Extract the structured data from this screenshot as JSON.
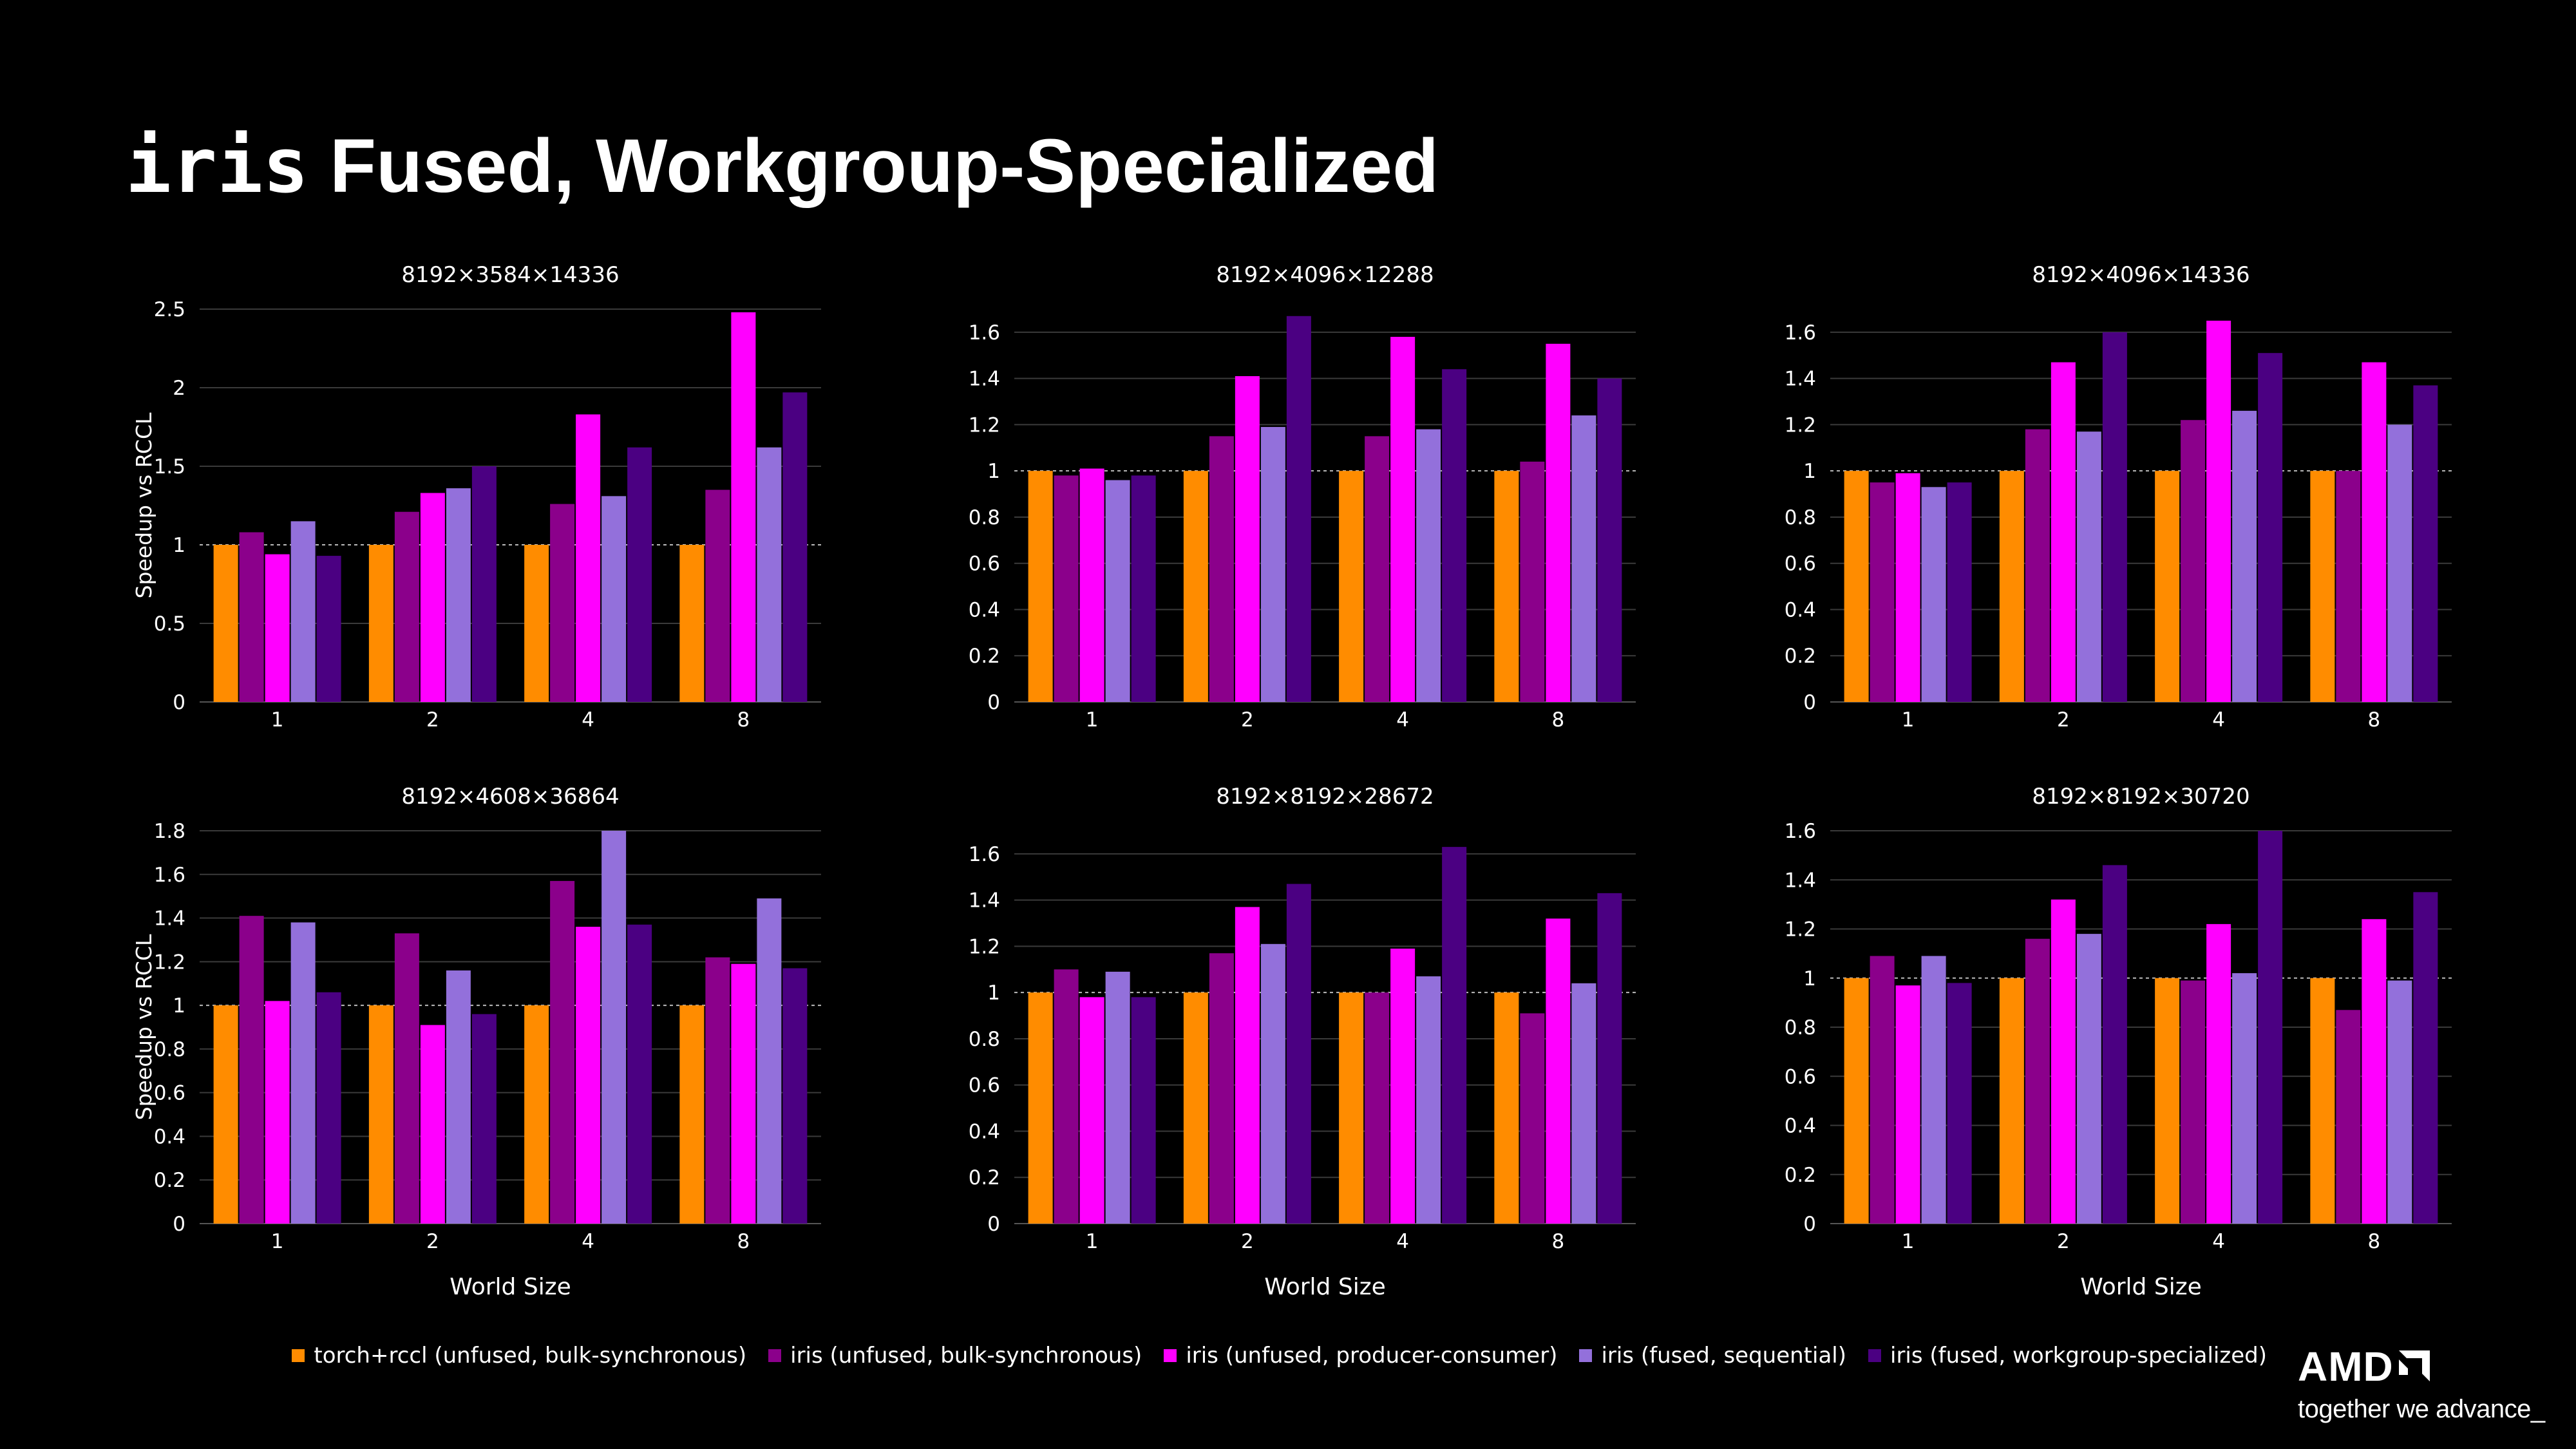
{
  "title": {
    "mono": "iris",
    "rest": " Fused, Workgroup-Specialized"
  },
  "series_colors": [
    "#ff8c00",
    "#8b008b",
    "#ff00ff",
    "#9370db",
    "#4b0082"
  ],
  "legend": [
    "torch+rccl (unfused, bulk-synchronous)",
    "iris (unfused, bulk-synchronous)",
    "iris (unfused, producer-consumer)",
    "iris (fused, sequential)",
    "iris (fused, workgroup-specialized)"
  ],
  "logo": {
    "brand": "AMD",
    "tagline": "together we advance_"
  },
  "chart_data": [
    {
      "type": "bar",
      "title": "8192×3584×14336",
      "categories": [
        "1",
        "2",
        "4",
        "8"
      ],
      "ylabel": "Speedup vs RCCL",
      "xlabel": "",
      "ylim": [
        0,
        2.5
      ],
      "yticks": [
        0,
        0.5,
        1,
        1.5,
        2,
        2.5
      ],
      "ytick_labels": [
        "0",
        "0.5",
        "1",
        "1.5",
        "2",
        "2.5"
      ],
      "series": [
        {
          "name": "torch+rccl (unfused, bulk-synchronous)",
          "values": [
            1.0,
            1.0,
            1.0,
            1.0
          ]
        },
        {
          "name": "iris (unfused, bulk-synchronous)",
          "values": [
            1.08,
            1.21,
            1.26,
            1.35
          ]
        },
        {
          "name": "iris (unfused, producer-consumer)",
          "values": [
            0.94,
            1.33,
            1.83,
            2.48
          ]
        },
        {
          "name": "iris (fused, sequential)",
          "values": [
            1.15,
            1.36,
            1.31,
            1.62
          ]
        },
        {
          "name": "iris (fused, workgroup-specialized)",
          "values": [
            0.93,
            1.5,
            1.62,
            1.97
          ]
        }
      ]
    },
    {
      "type": "bar",
      "title": "8192×4096×12288",
      "categories": [
        "1",
        "2",
        "4",
        "8"
      ],
      "ylabel": "",
      "xlabel": "",
      "ylim": [
        0,
        1.7
      ],
      "yticks": [
        0,
        0.2,
        0.4,
        0.6,
        0.8,
        1,
        1.2,
        1.4,
        1.6
      ],
      "ytick_labels": [
        "0",
        "0.2",
        "0.4",
        "0.6",
        "0.8",
        "1",
        "1.2",
        "1.4",
        "1.6"
      ],
      "series": [
        {
          "name": "torch+rccl (unfused, bulk-synchronous)",
          "values": [
            1.0,
            1.0,
            1.0,
            1.0
          ]
        },
        {
          "name": "iris (unfused, bulk-synchronous)",
          "values": [
            0.98,
            1.15,
            1.15,
            1.04
          ]
        },
        {
          "name": "iris (unfused, producer-consumer)",
          "values": [
            1.01,
            1.41,
            1.58,
            1.55
          ]
        },
        {
          "name": "iris (fused, sequential)",
          "values": [
            0.96,
            1.19,
            1.18,
            1.24
          ]
        },
        {
          "name": "iris (fused, workgroup-specialized)",
          "values": [
            0.98,
            1.67,
            1.44,
            1.4
          ]
        }
      ]
    },
    {
      "type": "bar",
      "title": "8192×4096×14336",
      "categories": [
        "1",
        "2",
        "4",
        "8"
      ],
      "ylabel": "",
      "xlabel": "",
      "ylim": [
        0,
        1.7
      ],
      "yticks": [
        0,
        0.2,
        0.4,
        0.6,
        0.8,
        1,
        1.2,
        1.4,
        1.6
      ],
      "ytick_labels": [
        "0",
        "0.2",
        "0.4",
        "0.6",
        "0.8",
        "1",
        "1.2",
        "1.4",
        "1.6"
      ],
      "series": [
        {
          "name": "torch+rccl (unfused, bulk-synchronous)",
          "values": [
            1.0,
            1.0,
            1.0,
            1.0
          ]
        },
        {
          "name": "iris (unfused, bulk-synchronous)",
          "values": [
            0.95,
            1.18,
            1.22,
            1.0
          ]
        },
        {
          "name": "iris (unfused, producer-consumer)",
          "values": [
            0.99,
            1.47,
            1.65,
            1.47
          ]
        },
        {
          "name": "iris (fused, sequential)",
          "values": [
            0.93,
            1.17,
            1.26,
            1.2
          ]
        },
        {
          "name": "iris (fused, workgroup-specialized)",
          "values": [
            0.95,
            1.6,
            1.51,
            1.37
          ]
        }
      ]
    },
    {
      "type": "bar",
      "title": "8192×4608×36864",
      "categories": [
        "1",
        "2",
        "4",
        "8"
      ],
      "ylabel": "Speedup vs RCCL",
      "xlabel": "World Size",
      "ylim": [
        0,
        1.8
      ],
      "yticks": [
        0,
        0.2,
        0.4,
        0.6,
        0.8,
        1,
        1.2,
        1.4,
        1.6,
        1.8
      ],
      "ytick_labels": [
        "0",
        "0.2",
        "0.4",
        "0.6",
        "0.8",
        "1",
        "1.2",
        "1.4",
        "1.6",
        "1.8"
      ],
      "series": [
        {
          "name": "torch+rccl (unfused, bulk-synchronous)",
          "values": [
            1.0,
            1.0,
            1.0,
            1.0
          ]
        },
        {
          "name": "iris (unfused, bulk-synchronous)",
          "values": [
            1.41,
            1.33,
            1.57,
            1.22
          ]
        },
        {
          "name": "iris (unfused, producer-consumer)",
          "values": [
            1.02,
            0.91,
            1.36,
            1.19
          ]
        },
        {
          "name": "iris (fused, sequential)",
          "values": [
            1.38,
            1.16,
            1.8,
            1.49
          ]
        },
        {
          "name": "iris (fused, workgroup-specialized)",
          "values": [
            1.06,
            0.96,
            1.37,
            1.17
          ]
        }
      ]
    },
    {
      "type": "bar",
      "title": "8192×8192×28672",
      "categories": [
        "1",
        "2",
        "4",
        "8"
      ],
      "ylabel": "",
      "xlabel": "World Size",
      "ylim": [
        0,
        1.7
      ],
      "yticks": [
        0,
        0.2,
        0.4,
        0.6,
        0.8,
        1,
        1.2,
        1.4,
        1.6
      ],
      "ytick_labels": [
        "0",
        "0.2",
        "0.4",
        "0.6",
        "0.8",
        "1",
        "1.2",
        "1.4",
        "1.6"
      ],
      "series": [
        {
          "name": "torch+rccl (unfused, bulk-synchronous)",
          "values": [
            1.0,
            1.0,
            1.0,
            1.0
          ]
        },
        {
          "name": "iris (unfused, bulk-synchronous)",
          "values": [
            1.1,
            1.17,
            1.0,
            0.91
          ]
        },
        {
          "name": "iris (unfused, producer-consumer)",
          "values": [
            0.98,
            1.37,
            1.19,
            1.32
          ]
        },
        {
          "name": "iris (fused, sequential)",
          "values": [
            1.09,
            1.21,
            1.07,
            1.04
          ]
        },
        {
          "name": "iris (fused, workgroup-specialized)",
          "values": [
            0.98,
            1.47,
            1.63,
            1.43
          ]
        }
      ]
    },
    {
      "type": "bar",
      "title": "8192×8192×30720",
      "categories": [
        "1",
        "2",
        "4",
        "8"
      ],
      "ylabel": "",
      "xlabel": "World Size",
      "ylim": [
        0,
        1.6
      ],
      "yticks": [
        0,
        0.2,
        0.4,
        0.6,
        0.8,
        1,
        1.2,
        1.4,
        1.6
      ],
      "ytick_labels": [
        "0",
        "0.2",
        "0.4",
        "0.6",
        "0.8",
        "1",
        "1.2",
        "1.4",
        "1.6"
      ],
      "series": [
        {
          "name": "torch+rccl (unfused, bulk-synchronous)",
          "values": [
            1.0,
            1.0,
            1.0,
            1.0
          ]
        },
        {
          "name": "iris (unfused, bulk-synchronous)",
          "values": [
            1.09,
            1.16,
            0.99,
            0.87
          ]
        },
        {
          "name": "iris (unfused, producer-consumer)",
          "values": [
            0.97,
            1.32,
            1.22,
            1.24
          ]
        },
        {
          "name": "iris (fused, sequential)",
          "values": [
            1.09,
            1.18,
            1.02,
            0.99
          ]
        },
        {
          "name": "iris (fused, workgroup-specialized)",
          "values": [
            0.98,
            1.46,
            1.6,
            1.35
          ]
        }
      ]
    }
  ]
}
